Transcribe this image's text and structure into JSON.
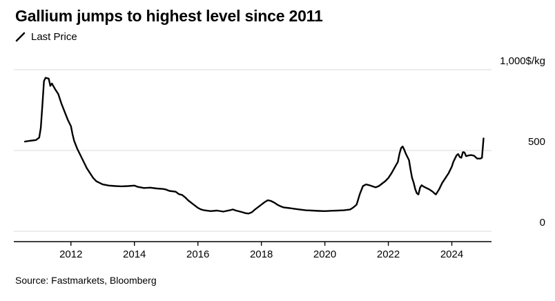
{
  "header": {
    "title": "Gallium jumps to highest level since 2011",
    "legend": {
      "label": "Last Price"
    }
  },
  "footer": {
    "source": "Source: Fastmarkets, Bloomberg"
  },
  "chart_data": {
    "type": "line",
    "title": "Gallium jumps to highest level since 2011",
    "series_name": "Last Price",
    "unit_label": "1,000$/kg",
    "line_color": "#000000",
    "grid_color": "#d9d9d9",
    "axis_color": "#000000",
    "xlim": [
      2010.2,
      2025.25
    ],
    "ylim": [
      0,
      1000
    ],
    "x_ticks": [
      "2012",
      "2014",
      "2016",
      "2018",
      "2020",
      "2022",
      "2024"
    ],
    "x_tick_values": [
      2012,
      2014,
      2016,
      2018,
      2020,
      2022,
      2024
    ],
    "y_ticks": [
      {
        "value": 0,
        "label": "0"
      },
      {
        "value": 500,
        "label": "500"
      },
      {
        "value": 1000,
        "label": "1,000$/kg"
      }
    ],
    "legend_position": "top-left",
    "grid": true,
    "points": [
      [
        2010.55,
        555
      ],
      [
        2010.7,
        560
      ],
      [
        2010.9,
        565
      ],
      [
        2011.0,
        580
      ],
      [
        2011.05,
        640
      ],
      [
        2011.1,
        780
      ],
      [
        2011.15,
        930
      ],
      [
        2011.2,
        950
      ],
      [
        2011.3,
        945
      ],
      [
        2011.35,
        900
      ],
      [
        2011.4,
        915
      ],
      [
        2011.5,
        880
      ],
      [
        2011.6,
        850
      ],
      [
        2011.7,
        790
      ],
      [
        2011.8,
        740
      ],
      [
        2011.9,
        690
      ],
      [
        2012.0,
        650
      ],
      [
        2012.05,
        600
      ],
      [
        2012.1,
        560
      ],
      [
        2012.2,
        510
      ],
      [
        2012.3,
        470
      ],
      [
        2012.4,
        430
      ],
      [
        2012.5,
        390
      ],
      [
        2012.6,
        360
      ],
      [
        2012.7,
        330
      ],
      [
        2012.8,
        310
      ],
      [
        2012.9,
        300
      ],
      [
        2013.0,
        290
      ],
      [
        2013.2,
        283
      ],
      [
        2013.4,
        280
      ],
      [
        2013.6,
        278
      ],
      [
        2013.8,
        280
      ],
      [
        2014.0,
        283
      ],
      [
        2014.1,
        275
      ],
      [
        2014.3,
        268
      ],
      [
        2014.5,
        270
      ],
      [
        2014.7,
        265
      ],
      [
        2014.9,
        262
      ],
      [
        2015.0,
        258
      ],
      [
        2015.1,
        250
      ],
      [
        2015.3,
        245
      ],
      [
        2015.4,
        230
      ],
      [
        2015.5,
        225
      ],
      [
        2015.6,
        210
      ],
      [
        2015.7,
        190
      ],
      [
        2015.8,
        175
      ],
      [
        2015.9,
        160
      ],
      [
        2016.0,
        145
      ],
      [
        2016.1,
        135
      ],
      [
        2016.2,
        130
      ],
      [
        2016.4,
        125
      ],
      [
        2016.6,
        128
      ],
      [
        2016.8,
        122
      ],
      [
        2017.0,
        130
      ],
      [
        2017.1,
        135
      ],
      [
        2017.2,
        128
      ],
      [
        2017.4,
        118
      ],
      [
        2017.5,
        112
      ],
      [
        2017.6,
        110
      ],
      [
        2017.7,
        118
      ],
      [
        2017.8,
        135
      ],
      [
        2017.9,
        150
      ],
      [
        2018.0,
        165
      ],
      [
        2018.1,
        180
      ],
      [
        2018.2,
        192
      ],
      [
        2018.3,
        188
      ],
      [
        2018.4,
        178
      ],
      [
        2018.5,
        165
      ],
      [
        2018.6,
        155
      ],
      [
        2018.7,
        148
      ],
      [
        2018.9,
        143
      ],
      [
        2019.0,
        140
      ],
      [
        2019.2,
        135
      ],
      [
        2019.4,
        130
      ],
      [
        2019.6,
        128
      ],
      [
        2019.8,
        126
      ],
      [
        2020.0,
        125
      ],
      [
        2020.2,
        127
      ],
      [
        2020.4,
        128
      ],
      [
        2020.6,
        130
      ],
      [
        2020.8,
        135
      ],
      [
        2020.9,
        148
      ],
      [
        2021.0,
        165
      ],
      [
        2021.1,
        230
      ],
      [
        2021.2,
        280
      ],
      [
        2021.3,
        290
      ],
      [
        2021.4,
        285
      ],
      [
        2021.5,
        278
      ],
      [
        2021.6,
        272
      ],
      [
        2021.7,
        280
      ],
      [
        2021.8,
        295
      ],
      [
        2021.9,
        310
      ],
      [
        2022.0,
        330
      ],
      [
        2022.1,
        360
      ],
      [
        2022.2,
        395
      ],
      [
        2022.3,
        430
      ],
      [
        2022.35,
        480
      ],
      [
        2022.4,
        515
      ],
      [
        2022.45,
        525
      ],
      [
        2022.5,
        505
      ],
      [
        2022.55,
        480
      ],
      [
        2022.6,
        460
      ],
      [
        2022.65,
        440
      ],
      [
        2022.7,
        380
      ],
      [
        2022.75,
        330
      ],
      [
        2022.8,
        300
      ],
      [
        2022.85,
        260
      ],
      [
        2022.9,
        235
      ],
      [
        2022.95,
        228
      ],
      [
        2023.0,
        270
      ],
      [
        2023.05,
        285
      ],
      [
        2023.1,
        278
      ],
      [
        2023.2,
        268
      ],
      [
        2023.3,
        258
      ],
      [
        2023.4,
        245
      ],
      [
        2023.45,
        235
      ],
      [
        2023.5,
        228
      ],
      [
        2023.6,
        260
      ],
      [
        2023.7,
        300
      ],
      [
        2023.8,
        330
      ],
      [
        2023.9,
        360
      ],
      [
        2024.0,
        400
      ],
      [
        2024.05,
        430
      ],
      [
        2024.1,
        450
      ],
      [
        2024.15,
        470
      ],
      [
        2024.2,
        478
      ],
      [
        2024.25,
        460
      ],
      [
        2024.3,
        455
      ],
      [
        2024.35,
        490
      ],
      [
        2024.4,
        488
      ],
      [
        2024.45,
        465
      ],
      [
        2024.5,
        468
      ],
      [
        2024.6,
        472
      ],
      [
        2024.7,
        468
      ],
      [
        2024.8,
        450
      ],
      [
        2024.9,
        450
      ],
      [
        2024.95,
        455
      ],
      [
        2025.0,
        575
      ]
    ]
  }
}
